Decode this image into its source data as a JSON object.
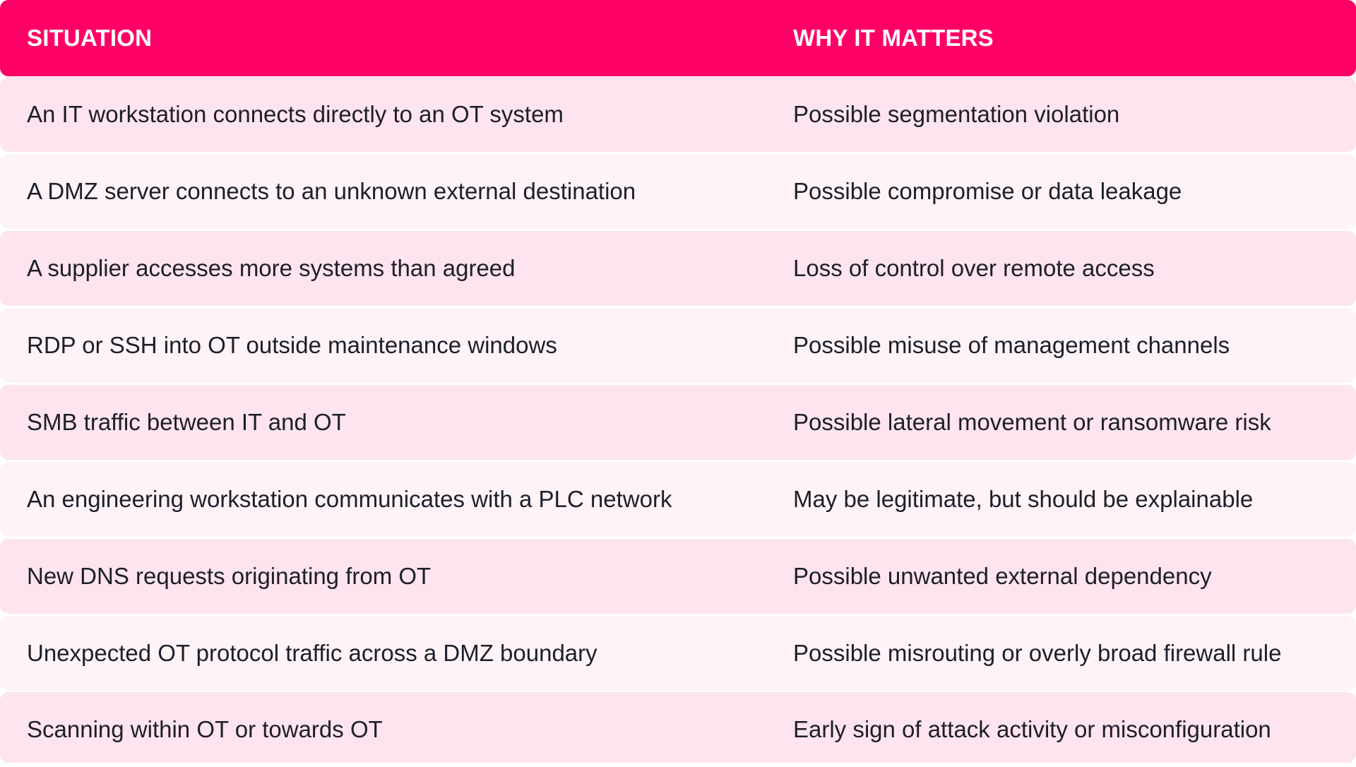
{
  "header": {
    "col1": "SITUATION",
    "col2": "WHY IT MATTERS"
  },
  "rows": [
    {
      "situation": "An IT workstation connects directly to an OT system",
      "why": "Possible segmentation violation"
    },
    {
      "situation": "A DMZ server connects to an unknown external destination",
      "why": "Possible compromise or data leakage"
    },
    {
      "situation": "A supplier accesses more systems than agreed",
      "why": "Loss of control over remote access"
    },
    {
      "situation": "RDP or SSH into OT outside maintenance windows",
      "why": "Possible misuse of management channels"
    },
    {
      "situation": "SMB traffic between IT and OT",
      "why": "Possible lateral movement or ransomware risk"
    },
    {
      "situation": "An engineering workstation communicates with a PLC network",
      "why": "May be legitimate, but should be explainable"
    },
    {
      "situation": "New DNS requests originating from OT",
      "why": "Possible unwanted external dependency"
    },
    {
      "situation": "Unexpected OT protocol traffic across a DMZ boundary",
      "why": "Possible misrouting or overly broad firewall rule"
    },
    {
      "situation": "Scanning within OT or towards OT",
      "why": "Early sign of attack activity or misconfiguration"
    }
  ],
  "colors": {
    "header_bg": "#ff0066",
    "row_odd_bg": "#fde4ee",
    "row_even_bg": "#fef3f7",
    "text": "#1e1e2a"
  }
}
